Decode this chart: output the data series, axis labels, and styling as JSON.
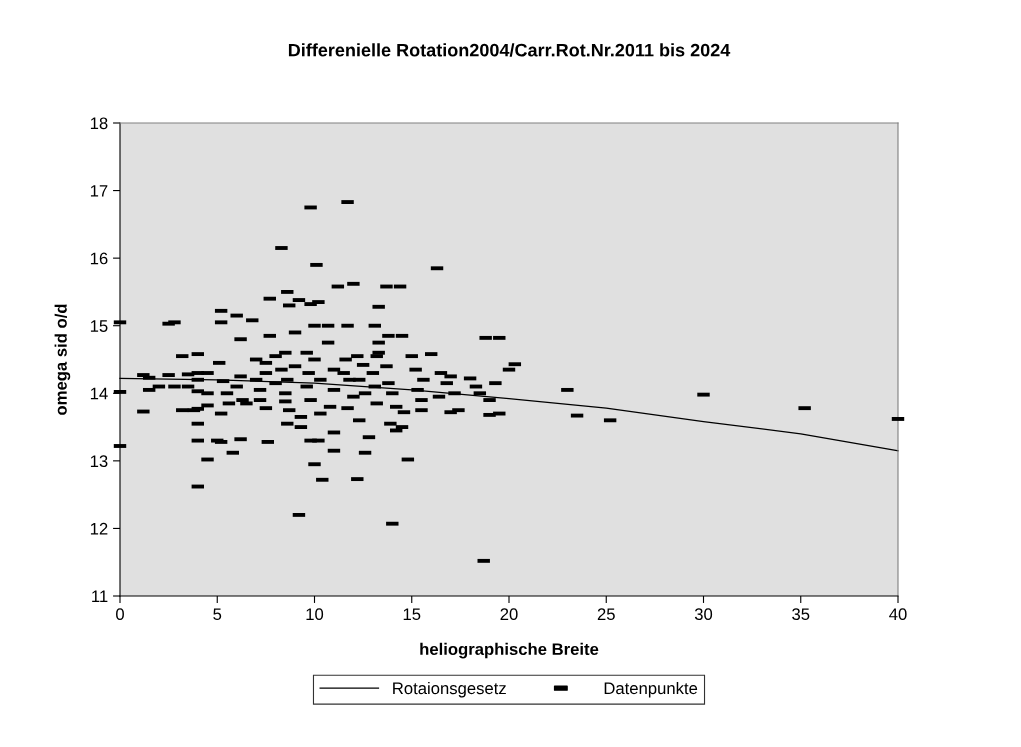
{
  "chart_data": {
    "type": "scatter",
    "title": "Differenielle Rotation2004/Carr.Rot.Nr.2011 bis 2024",
    "xlabel": "heliographische Breite",
    "ylabel": "omega sid o/d",
    "xlim": [
      0,
      40
    ],
    "ylim": [
      11,
      18
    ],
    "xticks": [
      0,
      5,
      10,
      15,
      20,
      25,
      30,
      35,
      40
    ],
    "yticks": [
      11,
      12,
      13,
      14,
      15,
      16,
      17,
      18
    ],
    "grid": false,
    "legend": "bottom",
    "series": [
      {
        "name": "Rotaionsgesetz",
        "type": "line",
        "color": "#000000",
        "marker": "none",
        "x": [
          0,
          5,
          10,
          15,
          20,
          25,
          30,
          35,
          40
        ],
        "values": [
          14.22,
          14.2,
          14.15,
          14.05,
          13.92,
          13.78,
          13.58,
          13.4,
          13.15
        ]
      },
      {
        "name": "Datenpunkte",
        "color": "#000000",
        "marker": "square",
        "x": [
          0,
          0,
          0,
          1.2,
          1.5,
          1.2,
          2,
          1.5,
          2.5,
          2.8,
          2.5,
          2.8,
          3.2,
          3.2,
          3.5,
          3.5,
          3.8,
          4,
          4,
          4,
          4,
          4,
          4,
          4,
          4,
          4.5,
          4.5,
          4.5,
          4.5,
          5,
          5.2,
          5.2,
          5.1,
          5.3,
          5.5,
          5.6,
          5.2,
          5.8,
          5.2,
          6,
          6.2,
          6.2,
          6,
          6.3,
          6.2,
          6.5,
          6.8,
          7,
          7,
          7.2,
          7.2,
          7.5,
          7.5,
          7.5,
          7.7,
          7.6,
          7.7,
          8,
          8,
          8.3,
          8.6,
          8.7,
          8.5,
          8.3,
          8.6,
          8.5,
          8.5,
          8.7,
          8.6,
          9,
          9,
          9.2,
          9.2,
          9.3,
          9.3,
          9.8,
          9.6,
          9.7,
          9.6,
          9.8,
          9.8,
          9.8,
          10.1,
          10.2,
          10,
          10,
          10.3,
          10.3,
          10,
          10.2,
          10.4,
          10.7,
          10.7,
          11,
          11,
          10.8,
          11,
          11,
          11.2,
          11.7,
          11.7,
          11.6,
          11.5,
          11.8,
          12,
          11.7,
          12,
          12.2,
          12.5,
          12.3,
          12.6,
          12.3,
          12.8,
          12.6,
          12.2,
          13.1,
          13.3,
          13.2,
          13.3,
          13.3,
          13,
          13.1,
          13.2,
          13.7,
          14.4,
          13.8,
          14.5,
          13.7,
          13.8,
          14,
          14.2,
          13.9,
          14.2,
          14.5,
          14,
          14.8,
          14.6,
          15,
          16,
          15.2,
          15.6,
          15.3,
          15.5,
          15.5,
          16.3,
          16.5,
          16.8,
          16.4,
          17,
          17,
          17.2,
          17.4,
          18,
          18.3,
          18.8,
          19.5,
          19.3,
          18.5,
          19,
          19,
          19.5,
          18.7,
          20,
          20.3,
          23,
          23.5,
          25.2,
          30,
          35.2,
          40
        ],
        "values": [
          15.05,
          14.02,
          13.22,
          14.27,
          14.05,
          13.73,
          14.1,
          14.23,
          15.03,
          15.05,
          14.27,
          14.1,
          13.75,
          14.55,
          14.28,
          14.1,
          13.75,
          14.58,
          14.3,
          14.2,
          14.03,
          13.77,
          13.55,
          13.3,
          12.62,
          14.3,
          14.0,
          13.82,
          13.02,
          13.3,
          15.22,
          15.05,
          14.45,
          14.18,
          14.0,
          13.85,
          13.7,
          13.12,
          13.28,
          15.15,
          14.8,
          14.25,
          14.1,
          13.9,
          13.32,
          13.85,
          15.08,
          14.5,
          14.2,
          14.05,
          13.9,
          13.78,
          14.3,
          14.45,
          15.4,
          13.28,
          14.85,
          14.55,
          14.15,
          16.15,
          15.5,
          15.3,
          14.6,
          14.35,
          14.2,
          14.0,
          13.88,
          13.75,
          13.55,
          14.4,
          14.9,
          15.38,
          12.2,
          13.65,
          13.5,
          15.32,
          14.6,
          14.3,
          14.1,
          13.9,
          13.3,
          16.75,
          15.9,
          15.35,
          15.0,
          14.5,
          14.2,
          13.7,
          12.95,
          13.3,
          12.72,
          15.0,
          14.75,
          14.35,
          14.05,
          13.8,
          13.42,
          13.15,
          15.58,
          16.83,
          15.0,
          14.5,
          14.3,
          14.2,
          13.95,
          13.78,
          15.62,
          14.55,
          14.42,
          14.2,
          14.0,
          13.6,
          13.35,
          13.12,
          12.73,
          15.0,
          14.75,
          14.55,
          14.6,
          15.28,
          14.3,
          14.1,
          13.85,
          15.58,
          15.58,
          14.85,
          14.85,
          14.4,
          14.15,
          14.0,
          13.8,
          13.55,
          13.45,
          13.5,
          12.07,
          13.02,
          13.72,
          14.55,
          14.58,
          14.35,
          14.2,
          14.05,
          13.9,
          13.75,
          15.85,
          14.3,
          14.15,
          13.95,
          13.72,
          14.25,
          14.0,
          13.75,
          14.22,
          14.1,
          14.82,
          14.82,
          14.15,
          14.0,
          13.9,
          13.68,
          13.7,
          11.52,
          14.35,
          14.43,
          14.05,
          13.67,
          13.6,
          13.98,
          13.78,
          13.62
        ]
      }
    ]
  }
}
